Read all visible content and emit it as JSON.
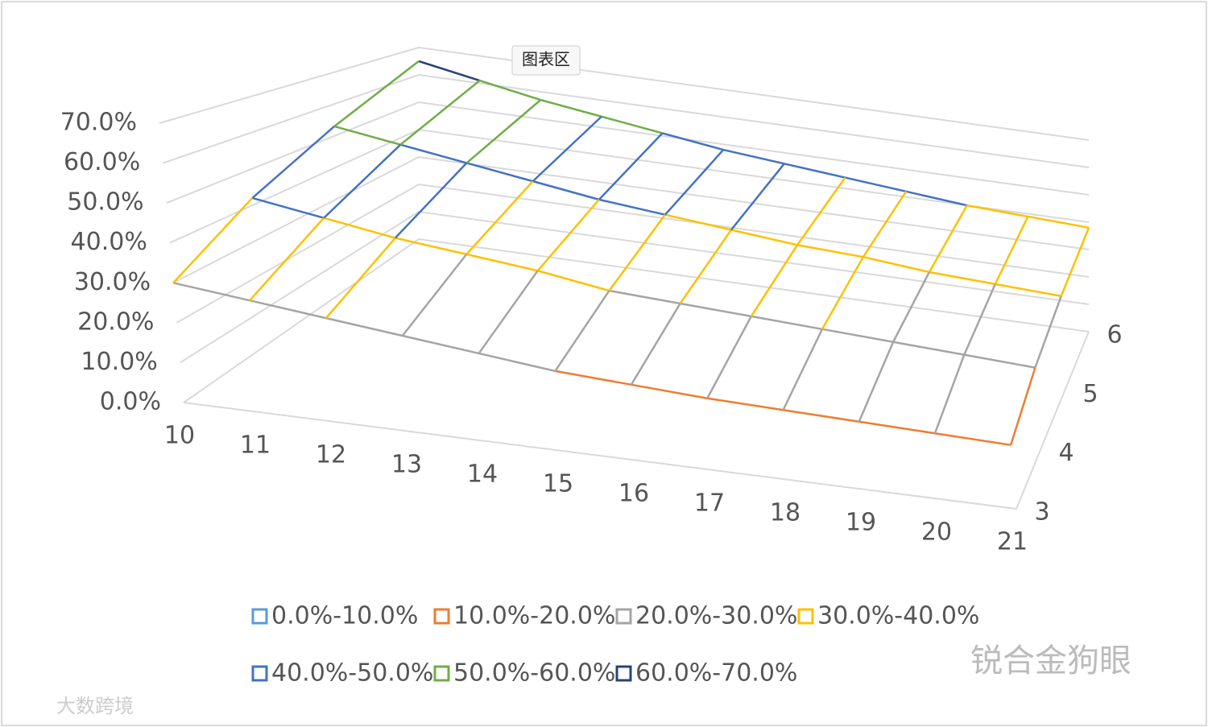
{
  "chart_data": {
    "type": "surface",
    "tooltip": "图表区",
    "watermarks": [
      "锐合金狗眼",
      "大数跨境"
    ],
    "x": [
      "10",
      "11",
      "12",
      "13",
      "14",
      "15",
      "16",
      "17",
      "18",
      "19",
      "20",
      "21"
    ],
    "series": [
      {
        "name": "3",
        "values": [
          30,
          28,
          26,
          24,
          22,
          20,
          19,
          18,
          17.5,
          17,
          16.5,
          16
        ]
      },
      {
        "name": "4",
        "values": [
          42,
          39,
          36,
          34,
          32,
          29,
          28,
          27,
          26,
          25,
          24,
          23
        ]
      },
      {
        "name": "5",
        "values": [
          53,
          50,
          47,
          44,
          41,
          39,
          37,
          35,
          34,
          32,
          31,
          30
        ]
      },
      {
        "name": "6",
        "values": [
          65,
          61,
          57,
          54,
          51,
          48,
          46,
          44,
          42,
          40,
          39,
          38
        ]
      }
    ],
    "ylim": [
      0,
      70
    ],
    "yticks": [
      {
        "value": 0,
        "label": "0.0%"
      },
      {
        "value": 10,
        "label": "10.0%"
      },
      {
        "value": 20,
        "label": "20.0%"
      },
      {
        "value": 30,
        "label": "30.0%"
      },
      {
        "value": 40,
        "label": "40.0%"
      },
      {
        "value": 50,
        "label": "50.0%"
      },
      {
        "value": 60,
        "label": "60.0%"
      },
      {
        "value": 70,
        "label": "70.0%"
      }
    ],
    "legend": [
      {
        "name": "0.0%-10.0%",
        "color": "#5b9bd5"
      },
      {
        "name": "10.0%-20.0%",
        "color": "#ed7d31"
      },
      {
        "name": "20.0%-30.0%",
        "color": "#a5a5a5"
      },
      {
        "name": "30.0%-40.0%",
        "color": "#ffc000"
      },
      {
        "name": "40.0%-50.0%",
        "color": "#4472c4"
      },
      {
        "name": "50.0%-60.0%",
        "color": "#70ad47"
      },
      {
        "name": "60.0%-70.0%",
        "color": "#264478"
      }
    ]
  }
}
